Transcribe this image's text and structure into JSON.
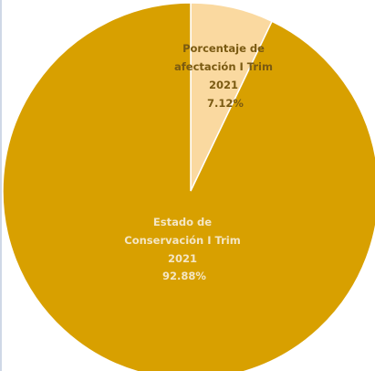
{
  "chart_data": {
    "type": "pie",
    "title": "",
    "slices": [
      {
        "label_lines": [
          "Porcentaje de",
          "afectación I Trim",
          "2021"
        ],
        "value_label": "7.12%",
        "value": 7.12,
        "color": "#fad9a0"
      },
      {
        "label_lines": [
          "Estado de",
          "Conservación I Trim",
          "2021"
        ],
        "value_label": "92.88%",
        "value": 92.88,
        "color": "#d8a000"
      }
    ],
    "start_angle_deg": 0,
    "direction": "clockwise",
    "slice_border_color": "#ffffff"
  }
}
